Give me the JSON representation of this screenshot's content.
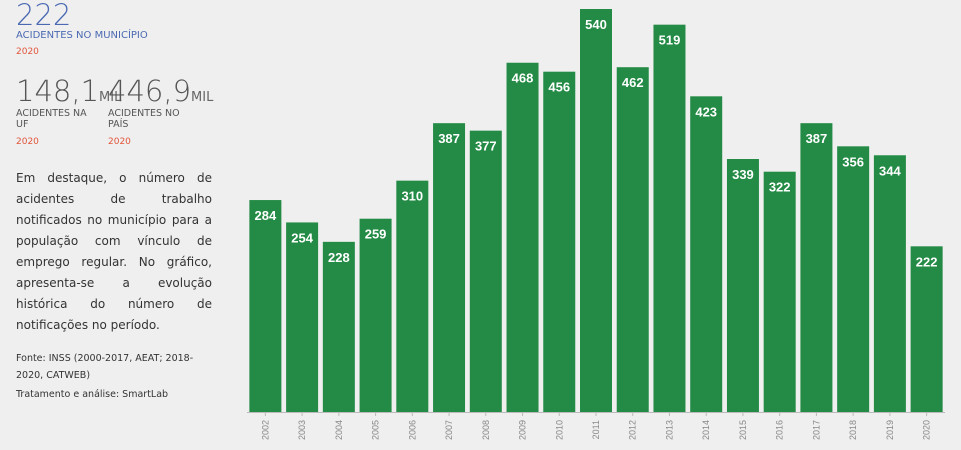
{
  "highlight": {
    "value": "222",
    "label": "ACIDENTES NO MUNICÍPIO",
    "year": "2020"
  },
  "stats": [
    {
      "value": "148,1",
      "unit": "MIL",
      "label": "ACIDENTES NA UF",
      "year": "2020"
    },
    {
      "value": "446,9",
      "unit": "MIL",
      "label": "ACIDENTES NO PAÍS",
      "year": "2020"
    }
  ],
  "description": "Em destaque, o número de acidentes de trabalho notificados no município para a população com vínculo de emprego regular. No gráfico, apresenta-se a evolução histórica do número de notificações no período.",
  "source": [
    "Fonte: INSS (2000-2017, AEAT; 2018-2020, CATWEB)",
    "Tratamento e análise: SmartLab"
  ],
  "chart_data": {
    "type": "bar",
    "categories": [
      "2002",
      "2003",
      "2004",
      "2005",
      "2006",
      "2007",
      "2008",
      "2009",
      "2010",
      "2011",
      "2012",
      "2013",
      "2014",
      "2015",
      "2016",
      "2017",
      "2018",
      "2019",
      "2020"
    ],
    "values": [
      284,
      254,
      228,
      259,
      310,
      387,
      377,
      468,
      456,
      540,
      462,
      519,
      423,
      339,
      322,
      387,
      356,
      344,
      222
    ],
    "color": "#238b45"
  }
}
